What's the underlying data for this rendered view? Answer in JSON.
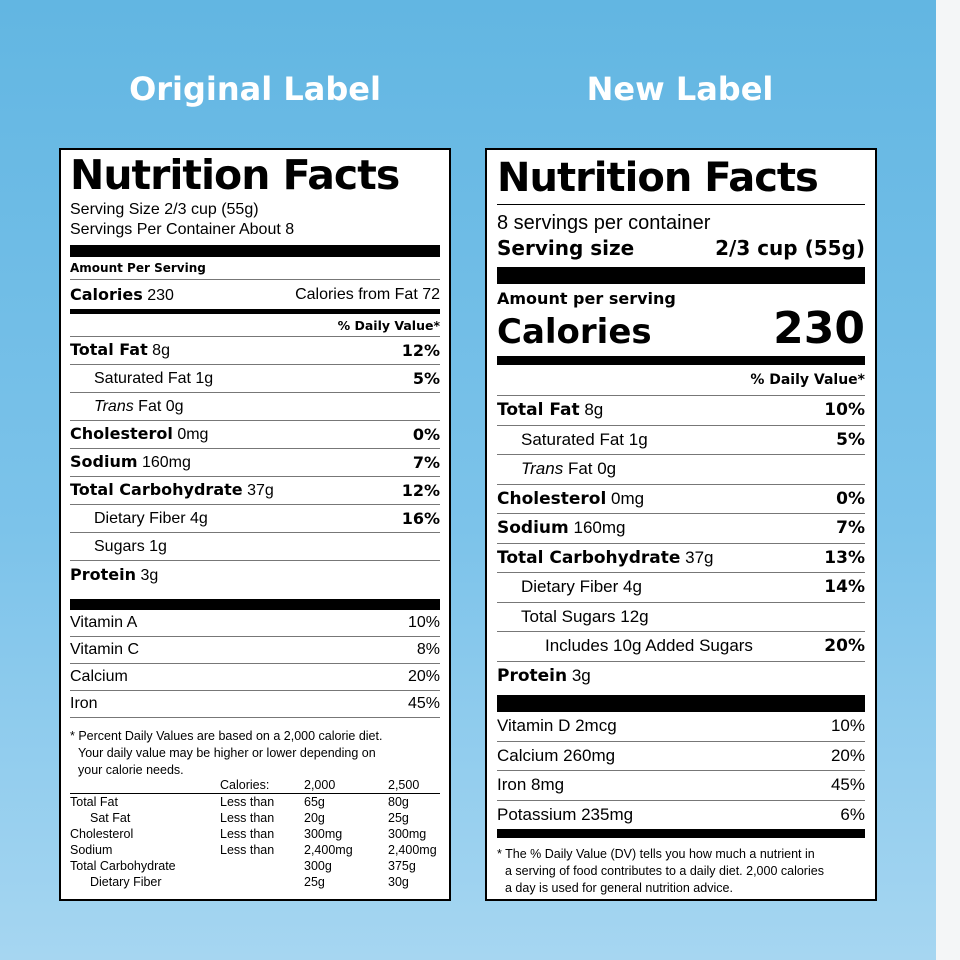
{
  "headings": {
    "left": "Original Label",
    "right": "New Label"
  },
  "original": {
    "title": "Nutrition Facts",
    "serving_size": "Serving Size 2/3 cup (55g)",
    "servings_per_container": "Servings Per Container About 8",
    "amount_per_serving": "Amount Per Serving",
    "calories_label": "Calories",
    "calories_value": "230",
    "calories_from_fat": "Calories from Fat 72",
    "dv_header": "% Daily Value*",
    "nutrients": [
      {
        "name": "Total Fat",
        "amount": "8g",
        "dv": "12%"
      },
      {
        "name": "Saturated Fat",
        "amount": "1g",
        "dv": "5%"
      },
      {
        "name": "Trans",
        "amount": "Fat 0g",
        "dv": ""
      },
      {
        "name": "Cholesterol",
        "amount": "0mg",
        "dv": "0%"
      },
      {
        "name": "Sodium",
        "amount": "160mg",
        "dv": "7%"
      },
      {
        "name": "Total Carbohydrate",
        "amount": "37g",
        "dv": "12%"
      },
      {
        "name": "Dietary Fiber",
        "amount": "4g",
        "dv": "16%"
      },
      {
        "name": "Sugars",
        "amount": "1g",
        "dv": ""
      },
      {
        "name": "Protein",
        "amount": "3g",
        "dv": ""
      }
    ],
    "vitamins": [
      {
        "name": "Vitamin A",
        "dv": "10%"
      },
      {
        "name": "Vitamin C",
        "dv": "8%"
      },
      {
        "name": "Calcium",
        "dv": "20%"
      },
      {
        "name": "Iron",
        "dv": "45%"
      }
    ],
    "footnote": [
      "* Percent Daily Values are based on a 2,000 calorie diet.",
      "Your daily value may be higher or lower depending on",
      "your calorie needs."
    ],
    "legend_header": [
      "Calories:",
      "2,000",
      "2,500"
    ],
    "legend_rows": [
      [
        "Total Fat",
        "Less than",
        "65g",
        "80g"
      ],
      [
        "Sat Fat",
        "Less than",
        "20g",
        "25g"
      ],
      [
        "Cholesterol",
        "Less than",
        "300mg",
        "300mg"
      ],
      [
        "Sodium",
        "Less than",
        "2,400mg",
        "2,400mg"
      ],
      [
        "Total Carbohydrate",
        "",
        "300g",
        "375g"
      ],
      [
        "Dietary Fiber",
        "",
        "25g",
        "30g"
      ]
    ]
  },
  "new": {
    "title": "Nutrition Facts",
    "servings_per_container": "8 servings per container",
    "serving_size_label": "Serving size",
    "serving_size_value": "2/3 cup (55g)",
    "amount_per_serving": "Amount per serving",
    "calories_label": "Calories",
    "calories_value": "230",
    "dv_header": "% Daily Value*",
    "nutrients": [
      {
        "name": "Total Fat",
        "amount": "8g",
        "dv": "10%"
      },
      {
        "name": "Saturated Fat",
        "amount": "1g",
        "dv": "5%"
      },
      {
        "name": "Trans",
        "amount": "Fat 0g",
        "dv": ""
      },
      {
        "name": "Cholesterol",
        "amount": "0mg",
        "dv": "0%"
      },
      {
        "name": "Sodium",
        "amount": "160mg",
        "dv": "7%"
      },
      {
        "name": "Total Carbohydrate",
        "amount": "37g",
        "dv": "13%"
      },
      {
        "name": "Dietary Fiber",
        "amount": "4g",
        "dv": "14%"
      },
      {
        "name": "Total Sugars",
        "amount": "12g",
        "dv": ""
      },
      {
        "name": "Includes 10g Added Sugars",
        "amount": "",
        "dv": "20%"
      },
      {
        "name": "Protein",
        "amount": "3g",
        "dv": ""
      }
    ],
    "minerals": [
      {
        "name": "Vitamin D 2mcg",
        "dv": "10%"
      },
      {
        "name": "Calcium 260mg",
        "dv": "20%"
      },
      {
        "name": "Iron 8mg",
        "dv": "45%"
      },
      {
        "name": "Potassium 235mg",
        "dv": "6%"
      }
    ],
    "footnote": [
      "* The % Daily Value (DV) tells you how much a nutrient in",
      "a serving of food contributes to a daily diet. 2,000 calories",
      "a day is used for general nutrition advice."
    ]
  },
  "colors": {
    "background": "#6cbbe6",
    "label": "#ffffff",
    "ink": "#000000",
    "heading": "#ffffff"
  }
}
